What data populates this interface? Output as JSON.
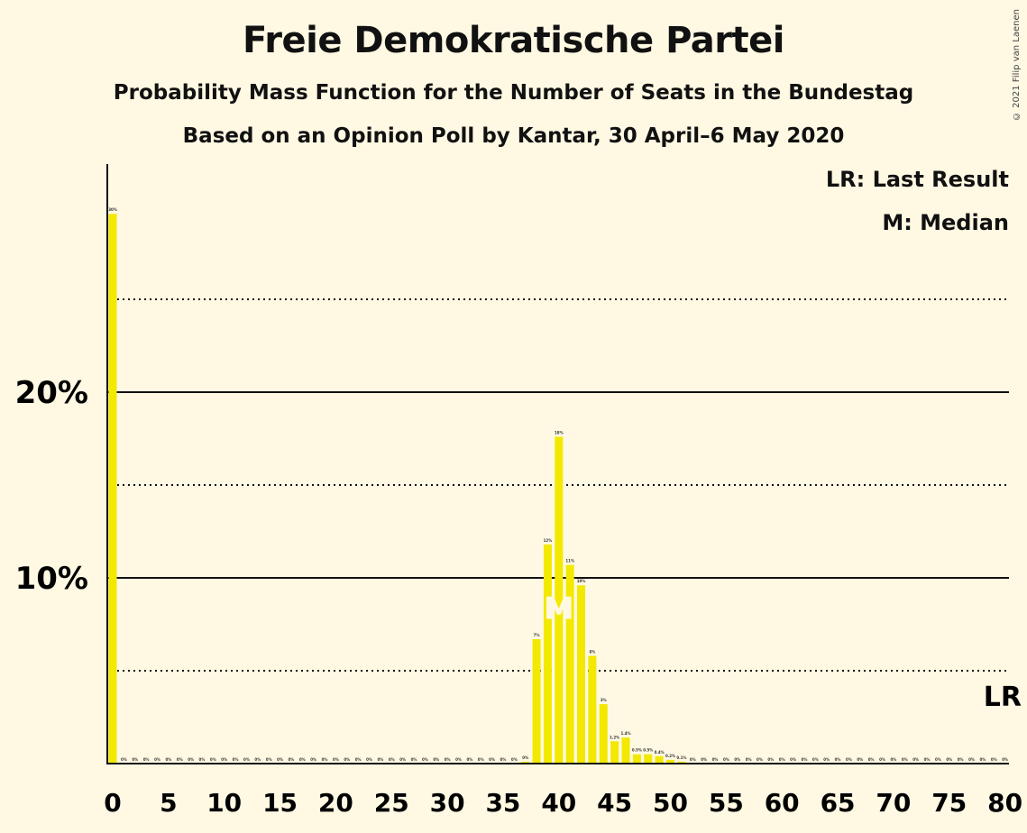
{
  "title": "Freie Demokratische Partei",
  "subtitle1": "Probability Mass Function for the Number of Seats in the Bundestag",
  "subtitle2": "Based on an Opinion Poll by Kantar, 30 April–6 May 2020",
  "copyright": "© 2021 Filip van Laenen",
  "legend": {
    "lr": "LR: Last Result",
    "median": "M: Median"
  },
  "colors": {
    "bar": "#F3E800",
    "background": "#FFF9E3",
    "axis": "#111111"
  },
  "chart_data": {
    "type": "bar",
    "title": "Freie Demokratische Partei",
    "xlabel": "",
    "ylabel": "",
    "xlim": [
      0,
      80
    ],
    "ylim": [
      0,
      32
    ],
    "x_ticks": [
      0,
      5,
      10,
      15,
      20,
      25,
      30,
      35,
      40,
      45,
      50,
      55,
      60,
      65,
      70,
      75,
      80
    ],
    "y_ticks_solid": [
      {
        "value": 10,
        "label": "10%"
      },
      {
        "value": 20,
        "label": "20%"
      }
    ],
    "y_ticks_dotted": [
      5,
      15,
      25
    ],
    "median": 40,
    "median_label": "M",
    "last_result": 80,
    "last_result_label": "LR",
    "values": [
      29.6,
      0,
      0,
      0,
      0,
      0,
      0,
      0,
      0,
      0,
      0,
      0,
      0,
      0,
      0,
      0,
      0,
      0,
      0,
      0,
      0,
      0,
      0,
      0,
      0,
      0,
      0,
      0,
      0,
      0,
      0,
      0,
      0,
      0,
      0,
      0,
      0,
      0.1,
      6.7,
      11.8,
      17.6,
      10.7,
      9.6,
      5.8,
      3.2,
      1.2,
      1.4,
      0.5,
      0.5,
      0.4,
      0.2,
      0.1,
      0,
      0,
      0,
      0,
      0,
      0,
      0,
      0,
      0,
      0,
      0,
      0,
      0,
      0,
      0,
      0,
      0,
      0,
      0,
      0,
      0,
      0,
      0,
      0,
      0,
      0,
      0,
      0,
      0
    ],
    "value_labels": [
      "30%",
      "0%",
      "0%",
      "0%",
      "0%",
      "0%",
      "0%",
      "0%",
      "0%",
      "0%",
      "0%",
      "0%",
      "0%",
      "0%",
      "0%",
      "0%",
      "0%",
      "0%",
      "0%",
      "0%",
      "0%",
      "0%",
      "0%",
      "0%",
      "0%",
      "0%",
      "0%",
      "0%",
      "0%",
      "0%",
      "0%",
      "0%",
      "0%",
      "0%",
      "0%",
      "0%",
      "0%",
      "0%",
      "7%",
      "12%",
      "18%",
      "11%",
      "10%",
      "6%",
      "3%",
      "1.2%",
      "1.4%",
      "0.5%",
      "0.5%",
      "0.4%",
      "0.2%",
      "0.1%",
      "0%",
      "0%",
      "0%",
      "0%",
      "0%",
      "0%",
      "0%",
      "0%",
      "0%",
      "0%",
      "0%",
      "0%",
      "0%",
      "0%",
      "0%",
      "0%",
      "0%",
      "0%",
      "0%",
      "0%",
      "0%",
      "0%",
      "0%",
      "0%",
      "0%",
      "0%",
      "0%",
      "0%",
      "0%"
    ]
  }
}
